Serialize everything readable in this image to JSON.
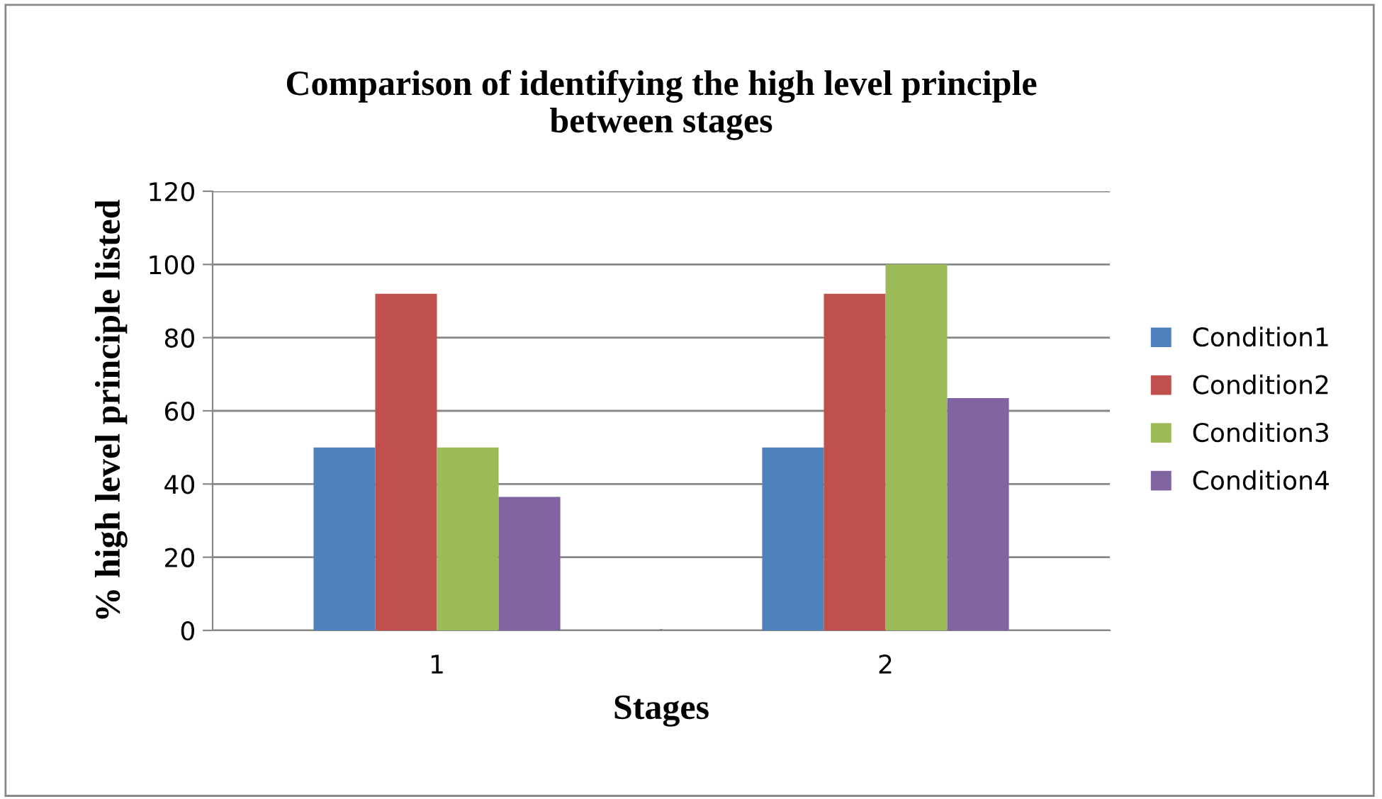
{
  "chart_data": {
    "type": "bar",
    "title": "Comparison of identifying the high level principle\nbetween stages",
    "xlabel": "Stages",
    "ylabel": "% high level principle listed",
    "categories": [
      "1",
      "2"
    ],
    "series": [
      {
        "name": "Condition1",
        "color": "#4f81bd",
        "values": [
          50,
          50
        ]
      },
      {
        "name": "Condition2",
        "color": "#c0504d",
        "values": [
          92,
          92
        ]
      },
      {
        "name": "Condition3",
        "color": "#9bbb59",
        "values": [
          50,
          100
        ]
      },
      {
        "name": "Condition4",
        "color": "#8064a2",
        "values": [
          36.5,
          63.5
        ]
      }
    ],
    "ylim": [
      0,
      120
    ],
    "yticks": [
      0,
      20,
      40,
      60,
      80,
      100,
      120
    ],
    "grid": "y",
    "legend": "right"
  }
}
